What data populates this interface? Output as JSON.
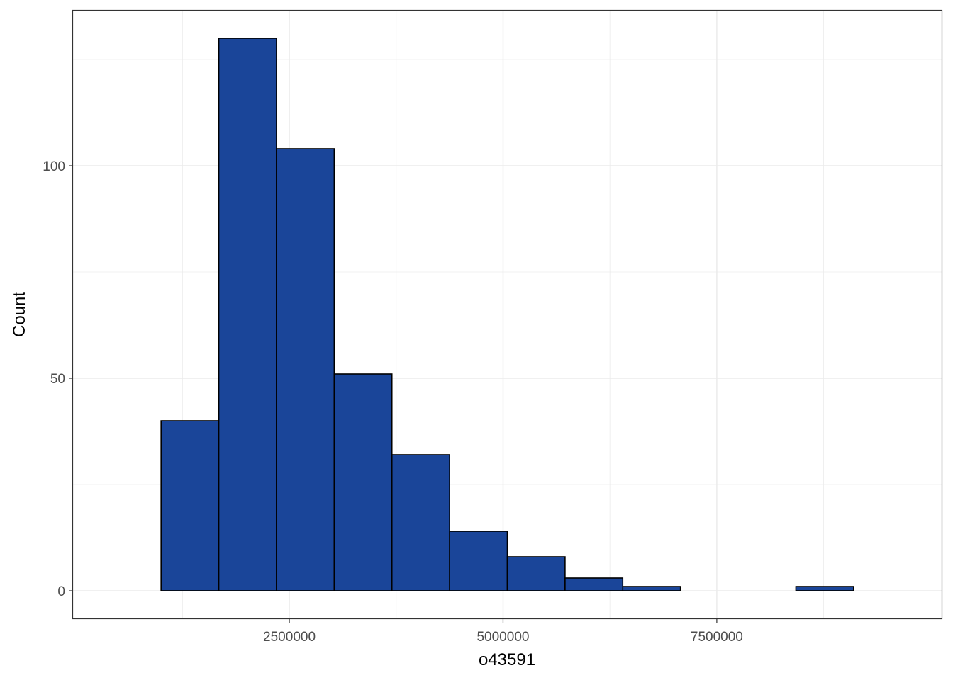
{
  "chart_data": {
    "type": "bar",
    "subtype": "histogram",
    "xlabel": "o43591",
    "ylabel": "Count",
    "title": "",
    "bin_edges": [
      1000000,
      1675000,
      2350000,
      3025000,
      3700000,
      4375000,
      5050000,
      5725000,
      6400000,
      7075000,
      7750000,
      8425000,
      9100000
    ],
    "values": [
      40,
      130,
      104,
      51,
      32,
      14,
      8,
      3,
      1,
      0,
      0,
      1
    ],
    "xlim": [
      -30000,
      10130000
    ],
    "ylim": [
      -6.5,
      136.5
    ],
    "x_ticks": [
      2500000,
      5000000,
      7500000
    ],
    "x_tick_labels": [
      "2500000",
      "5000000",
      "7500000"
    ],
    "y_ticks": [
      0,
      50,
      100
    ],
    "y_tick_labels": [
      "0",
      "50",
      "100"
    ],
    "x_minor_gridlines": [
      1250000,
      3750000,
      6250000,
      8750000
    ],
    "y_minor_gridlines": [
      25,
      75,
      125
    ],
    "grid": true,
    "legend": "none",
    "colors": {
      "bar_fill": "#1a4599",
      "bar_outline": "#000000",
      "grid": "#ebebeb",
      "panel_border": "#333333"
    }
  }
}
